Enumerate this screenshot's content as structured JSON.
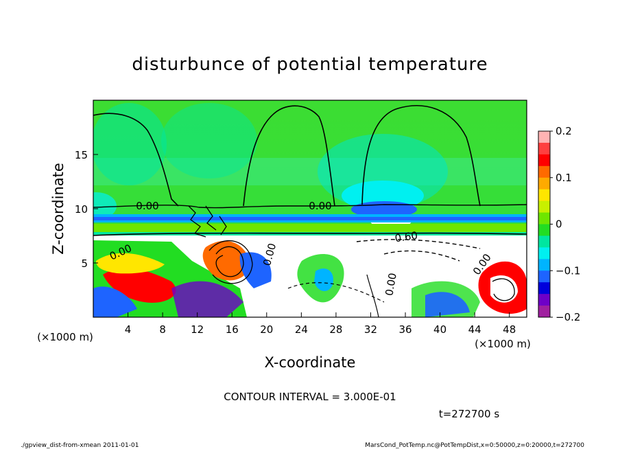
{
  "chart_data": {
    "type": "heatmap",
    "title": "disturbunce of potential temperature",
    "xlabel": "X-coordinate",
    "ylabel": "Z-coordinate",
    "x_unit": "(×1000 m)",
    "y_unit": "(×1000 m)",
    "xlim": [
      0,
      50
    ],
    "ylim": [
      0,
      20
    ],
    "x_ticks": [
      4,
      8,
      12,
      16,
      20,
      24,
      28,
      32,
      36,
      40,
      44,
      48
    ],
    "y_ticks": [
      5,
      10,
      15
    ],
    "colorbar": {
      "range": [
        -0.2,
        0.2
      ],
      "tick_values": [
        0.2,
        0.1,
        0,
        -0.1,
        -0.2
      ],
      "tick_labels": [
        "0.2",
        "0.1",
        "0",
        "−0.1",
        "−0.2"
      ],
      "colors": [
        "#ffb3b3",
        "#ff4040",
        "#ff0000",
        "#ff6a00",
        "#ffaa00",
        "#ffe600",
        "#c8f000",
        "#6ee600",
        "#22dd22",
        "#00e6a0",
        "#00f0f0",
        "#00b4ff",
        "#1e64ff",
        "#0000dc",
        "#6e00c8",
        "#a020a0"
      ]
    },
    "contour_labels": [
      "0.00",
      "0.00",
      "0.00",
      "0.00",
      "0.60",
      "0.00",
      "0.00"
    ],
    "contour_interval_text": "CONTOUR INTERVAL = 3.000E-01",
    "time_text": "t=272700 s"
  },
  "footer": {
    "left": "./gpview_dist-from-xmean 2011-01-01",
    "right": "MarsCond_PotTemp.nc@PotTempDist,x=0:50000,z=0:20000,t=272700"
  }
}
